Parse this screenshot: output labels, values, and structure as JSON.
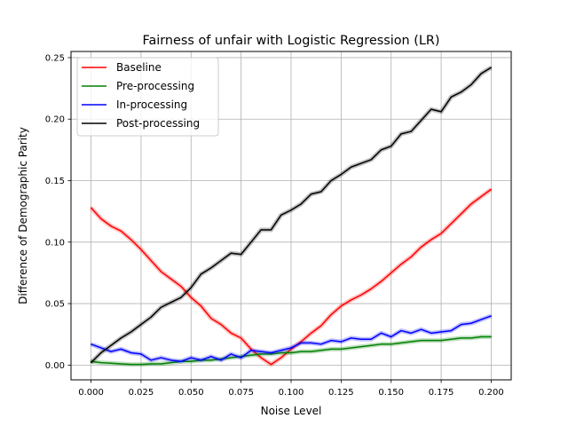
{
  "chart_data": {
    "type": "line",
    "title": "Fairness of unfair with Logistic Regression (LR)",
    "xlabel": "Noise Level",
    "ylabel": "Difference of Demographic Parity",
    "xlim": [
      -0.01,
      0.21
    ],
    "ylim": [
      -0.012,
      0.255
    ],
    "grid": true,
    "legend_position": "top-left",
    "x_ticks": [
      "0.000",
      "0.025",
      "0.050",
      "0.075",
      "0.100",
      "0.125",
      "0.150",
      "0.175",
      "0.200"
    ],
    "x_tick_values": [
      0,
      0.025,
      0.05,
      0.075,
      0.1,
      0.125,
      0.15,
      0.175,
      0.2
    ],
    "y_ticks": [
      "0.00",
      "0.05",
      "0.10",
      "0.15",
      "0.20",
      "0.25"
    ],
    "y_tick_values": [
      0,
      0.05,
      0.1,
      0.15,
      0.2,
      0.25
    ],
    "x": [
      0,
      0.005,
      0.01,
      0.015,
      0.02,
      0.025,
      0.03,
      0.035,
      0.04,
      0.045,
      0.05,
      0.055,
      0.06,
      0.065,
      0.07,
      0.075,
      0.08,
      0.085,
      0.09,
      0.095,
      0.1,
      0.105,
      0.11,
      0.115,
      0.12,
      0.125,
      0.13,
      0.135,
      0.14,
      0.145,
      0.15,
      0.155,
      0.16,
      0.165,
      0.17,
      0.175,
      0.18,
      0.185,
      0.19,
      0.195,
      0.2
    ],
    "series": [
      {
        "name": "Baseline",
        "color": "#ff0000",
        "values": [
          0.128,
          0.119,
          0.113,
          0.109,
          0.102,
          0.094,
          0.085,
          0.076,
          0.07,
          0.064,
          0.055,
          0.048,
          0.038,
          0.033,
          0.026,
          0.022,
          0.013,
          0.006,
          0.0005,
          0.006,
          0.013,
          0.019,
          0.026,
          0.032,
          0.041,
          0.048,
          0.053,
          0.057,
          0.062,
          0.068,
          0.075,
          0.082,
          0.088,
          0.096,
          0.102,
          0.107,
          0.115,
          0.123,
          0.131,
          0.137,
          0.143
        ]
      },
      {
        "name": "Pre-processing",
        "color": "#008000",
        "values": [
          0.003,
          0.002,
          0.0015,
          0.001,
          0.0005,
          0.0005,
          0.001,
          0.001,
          0.002,
          0.003,
          0.003,
          0.004,
          0.004,
          0.005,
          0.006,
          0.007,
          0.008,
          0.009,
          0.009,
          0.01,
          0.01,
          0.011,
          0.011,
          0.012,
          0.013,
          0.013,
          0.014,
          0.015,
          0.016,
          0.017,
          0.017,
          0.018,
          0.019,
          0.02,
          0.02,
          0.02,
          0.021,
          0.022,
          0.022,
          0.023,
          0.023
        ]
      },
      {
        "name": "In-processing",
        "color": "#0000ff",
        "values": [
          0.017,
          0.014,
          0.011,
          0.013,
          0.01,
          0.009,
          0.004,
          0.006,
          0.004,
          0.003,
          0.006,
          0.004,
          0.007,
          0.004,
          0.009,
          0.006,
          0.012,
          0.011,
          0.01,
          0.012,
          0.014,
          0.018,
          0.018,
          0.017,
          0.02,
          0.019,
          0.022,
          0.021,
          0.021,
          0.026,
          0.023,
          0.028,
          0.026,
          0.029,
          0.026,
          0.027,
          0.028,
          0.033,
          0.034,
          0.037,
          0.04
        ]
      },
      {
        "name": "Post-processing",
        "color": "#000000",
        "values": [
          0.002,
          0.01,
          0.016,
          0.022,
          0.027,
          0.033,
          0.039,
          0.047,
          0.051,
          0.055,
          0.063,
          0.074,
          0.079,
          0.085,
          0.091,
          0.09,
          0.1,
          0.11,
          0.11,
          0.122,
          0.126,
          0.131,
          0.139,
          0.141,
          0.15,
          0.155,
          0.161,
          0.164,
          0.167,
          0.175,
          0.178,
          0.188,
          0.19,
          0.199,
          0.208,
          0.206,
          0.218,
          0.222,
          0.228,
          0.237,
          0.242
        ]
      }
    ]
  }
}
